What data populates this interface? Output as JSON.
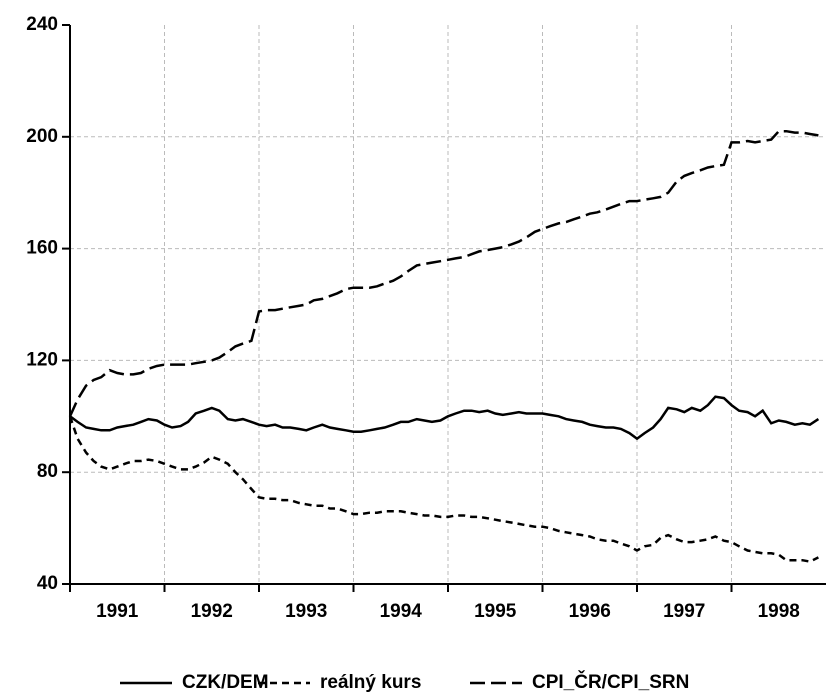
{
  "chart_data": {
    "type": "line",
    "x": [
      1991.0,
      1991.08,
      1991.17,
      1991.25,
      1991.33,
      1991.42,
      1991.5,
      1991.58,
      1991.67,
      1991.75,
      1991.83,
      1991.92,
      1992.0,
      1992.08,
      1992.17,
      1992.25,
      1992.33,
      1992.42,
      1992.5,
      1992.58,
      1992.67,
      1992.75,
      1992.83,
      1992.92,
      1993.0,
      1993.08,
      1993.17,
      1993.25,
      1993.33,
      1993.42,
      1993.5,
      1993.58,
      1993.67,
      1993.75,
      1993.83,
      1993.92,
      1994.0,
      1994.08,
      1994.17,
      1994.25,
      1994.33,
      1994.42,
      1994.5,
      1994.58,
      1994.67,
      1994.75,
      1994.83,
      1994.92,
      1995.0,
      1995.08,
      1995.17,
      1995.25,
      1995.33,
      1995.42,
      1995.5,
      1995.58,
      1995.67,
      1995.75,
      1995.83,
      1995.92,
      1996.0,
      1996.08,
      1996.17,
      1996.25,
      1996.33,
      1996.42,
      1996.5,
      1996.58,
      1996.67,
      1996.75,
      1996.83,
      1996.92,
      1997.0,
      1997.08,
      1997.17,
      1997.25,
      1997.33,
      1997.42,
      1997.5,
      1997.58,
      1997.67,
      1997.75,
      1997.83,
      1997.92,
      1998.0,
      1998.08,
      1998.17,
      1998.25,
      1998.33,
      1998.42,
      1998.5,
      1998.58,
      1998.67,
      1998.75,
      1998.83,
      1998.92
    ],
    "series": [
      {
        "name": "CZK/DEM",
        "color": "#000000",
        "style": "solid",
        "values": [
          100,
          98,
          96,
          95.5,
          95,
          95,
          96,
          96.5,
          97,
          98,
          99,
          98.5,
          97,
          96,
          96.5,
          98,
          101,
          102,
          103,
          102,
          99,
          98.5,
          99,
          98,
          97,
          96.5,
          97,
          96,
          96,
          95.5,
          95,
          96,
          97,
          96,
          95.5,
          95,
          94.5,
          94.5,
          95,
          95.5,
          96,
          97,
          98,
          98,
          99,
          98.5,
          98,
          98.5,
          100,
          101,
          102,
          102,
          101.5,
          102,
          101,
          100.5,
          101,
          101.5,
          101,
          101,
          101,
          100.5,
          100,
          99,
          98.5,
          98,
          97,
          96.5,
          96,
          96,
          95.5,
          94,
          92,
          94,
          96,
          99,
          103,
          102.5,
          101.5,
          103,
          102,
          104,
          107,
          106.5,
          104,
          102,
          101.5,
          100,
          102,
          97.5,
          98.5,
          98,
          97,
          97.5,
          97,
          99
        ]
      },
      {
        "name": "reálný kurs",
        "color": "#000000",
        "style": "dashed",
        "values": [
          100,
          92,
          87,
          84,
          82,
          81,
          82,
          83,
          84,
          84,
          84.5,
          84,
          83,
          82,
          81,
          81,
          82,
          83.5,
          85.5,
          84.5,
          83,
          80,
          77.5,
          74,
          71,
          70.5,
          70.5,
          70,
          70,
          69,
          68.5,
          68,
          68,
          67,
          67,
          66,
          65,
          65,
          65.5,
          65.5,
          66,
          66,
          66,
          65.5,
          65,
          64.5,
          64.5,
          64,
          64,
          64.5,
          64.5,
          64,
          64,
          63.5,
          63,
          62.5,
          62,
          61.5,
          61,
          60.5,
          60.5,
          60,
          59,
          58.5,
          58,
          57.5,
          57,
          56,
          55.5,
          55.5,
          54.5,
          53.5,
          52,
          53.5,
          54,
          56.5,
          57.5,
          56,
          55,
          55,
          55.5,
          56,
          57,
          55.5,
          55,
          53.5,
          52,
          51.5,
          51,
          51,
          50.5,
          48.5,
          48.5,
          48.5,
          48,
          49.5
        ]
      },
      {
        "name": "CPI_ČR/CPI_SRN",
        "color": "#000000",
        "style": "longdash",
        "values": [
          100,
          106,
          111,
          113,
          114,
          116.5,
          115.5,
          115,
          115,
          115.5,
          117,
          118,
          118.5,
          118.5,
          118.5,
          118.5,
          119,
          119.5,
          120,
          121,
          123,
          125,
          126,
          127,
          137.5,
          138,
          138,
          138.5,
          139,
          139.5,
          140,
          141.5,
          142,
          143,
          144,
          145.5,
          146,
          146,
          146,
          146.5,
          147.5,
          148.5,
          150,
          152,
          154,
          154.5,
          155,
          155.5,
          156,
          156.5,
          157,
          158,
          159,
          159.5,
          160,
          160.5,
          161.5,
          162.5,
          164,
          166,
          167,
          168,
          169,
          169.5,
          170.5,
          171.5,
          172.5,
          173,
          174,
          175,
          176,
          177,
          177,
          177.5,
          178,
          178.5,
          180,
          184,
          186,
          187,
          188,
          189,
          189.5,
          190,
          198,
          198,
          198.5,
          198,
          198.5,
          199,
          202,
          202,
          201.5,
          201.5,
          201,
          200.5
        ]
      }
    ],
    "xlim": [
      1991,
      1999
    ],
    "xticks": [
      1991,
      1992,
      1993,
      1994,
      1995,
      1996,
      1997,
      1998
    ],
    "ylim": [
      40,
      240
    ],
    "yticks": [
      40,
      80,
      120,
      160,
      200,
      240
    ],
    "grid": true,
    "legend": "bottom"
  }
}
